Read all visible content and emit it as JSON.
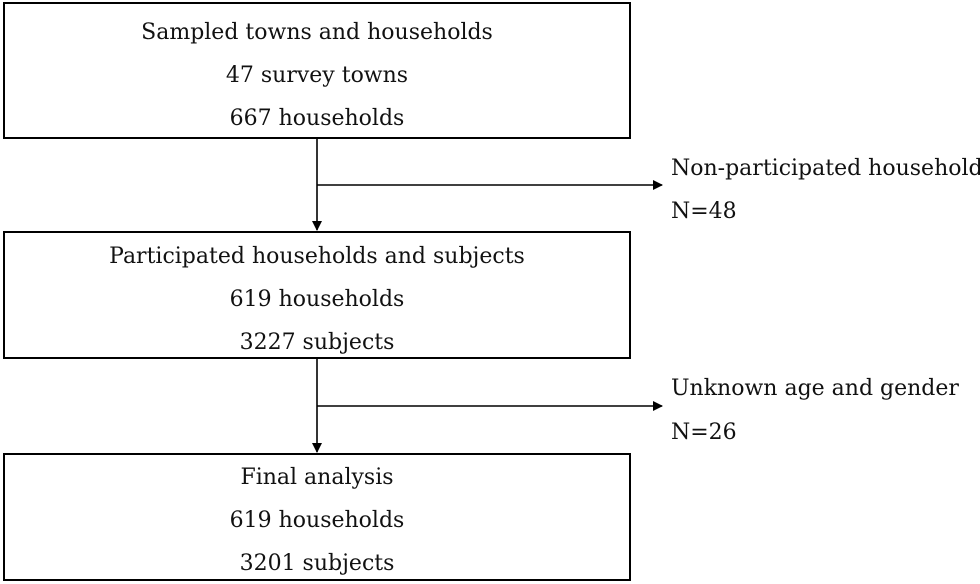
{
  "stages": [
    {
      "title": "Sampled towns and  households",
      "line2": "47 survey towns",
      "line3": "667 households"
    },
    {
      "title": "Participated households and subjects",
      "line2": "619 households",
      "line3": "3227 subjects"
    },
    {
      "title": "Final analysis",
      "line2": "619 households",
      "line3": "3201 subjects"
    }
  ],
  "exclusions": [
    {
      "label": "Non-participated households",
      "count": "N=48"
    },
    {
      "label": "Unknown age and gender",
      "count": "N=26"
    }
  ]
}
